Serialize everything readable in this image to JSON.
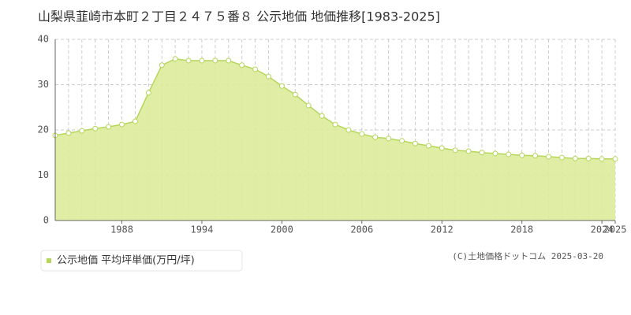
{
  "chart_data": {
    "type": "area",
    "title": "山梨県韮崎市本町２丁目２４７５番８ 公示地価 地価推移[1983-2025]",
    "credit": "(C)土地価格ドットコム 2025-03-20",
    "x": [
      1983,
      1984,
      1985,
      1986,
      1987,
      1988,
      1989,
      1990,
      1991,
      1992,
      1993,
      1994,
      1995,
      1996,
      1997,
      1998,
      1999,
      2000,
      2001,
      2002,
      2003,
      2004,
      2005,
      2006,
      2007,
      2008,
      2009,
      2010,
      2011,
      2012,
      2013,
      2014,
      2015,
      2016,
      2017,
      2018,
      2019,
      2020,
      2021,
      2022,
      2023,
      2024,
      2025
    ],
    "series": [
      {
        "name": "公示地価 平均坪単価(万円/坪)",
        "color": "#b5d65a",
        "values": [
          18.8,
          19.3,
          19.8,
          20.3,
          20.7,
          21.2,
          21.9,
          28.2,
          34.3,
          35.7,
          35.3,
          35.3,
          35.3,
          35.3,
          34.3,
          33.4,
          31.8,
          29.7,
          27.8,
          25.4,
          23.1,
          21.2,
          20.0,
          19.1,
          18.4,
          18.1,
          17.6,
          17.0,
          16.5,
          16.0,
          15.5,
          15.3,
          15.0,
          14.8,
          14.6,
          14.4,
          14.3,
          14.1,
          13.9,
          13.7,
          13.7,
          13.6,
          13.6
        ]
      }
    ],
    "xlim": [
      1983,
      2025
    ],
    "xticks": [
      1988,
      1994,
      2000,
      2006,
      2012,
      2018,
      2024,
      2025
    ],
    "ylim": [
      0,
      40
    ],
    "yticks": [
      0,
      10,
      20,
      30,
      40
    ],
    "grid": true
  }
}
